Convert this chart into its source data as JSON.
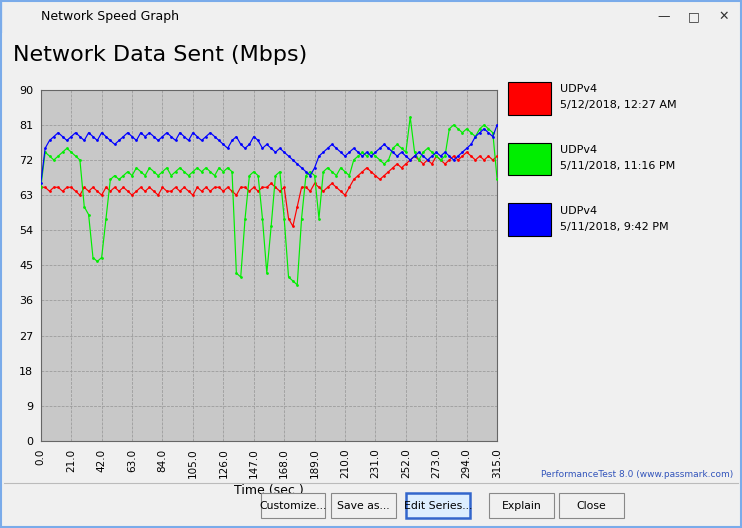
{
  "title": "Network Data Sent (Mbps)",
  "window_title": "Network Speed Graph",
  "xlabel": "Time (sec.)",
  "ylim": [
    0,
    90
  ],
  "yticks": [
    0,
    9,
    18,
    27,
    36,
    45,
    54,
    63,
    72,
    81,
    90
  ],
  "xticks": [
    0.0,
    21.0,
    42.0,
    63.0,
    84.0,
    105.0,
    126.0,
    147.0,
    168.0,
    189.0,
    210.0,
    231.0,
    252.0,
    273.0,
    294.0,
    315.0
  ],
  "xlim": [
    0,
    315
  ],
  "plot_bg_color": "#c8c8c8",
  "outer_bg_color": "#f0f0f0",
  "content_bg_color": "#ffffff",
  "titlebar_bg": "#f0f0f0",
  "legend": [
    {
      "label1": "UDPv4",
      "label2": "5/12/2018, 12:27 AM",
      "color": "#ff0000"
    },
    {
      "label1": "UDPv4",
      "label2": "5/11/2018, 11:16 PM",
      "color": "#00ee00"
    },
    {
      "label1": "UDPv4",
      "label2": "5/11/2018, 9:42 PM",
      "color": "#0000ff"
    }
  ],
  "watermark": "PerformanceTest 8.0 (www.passmark.com)",
  "red_x": [
    0,
    3,
    6,
    9,
    12,
    15,
    18,
    21,
    24,
    27,
    30,
    33,
    36,
    39,
    42,
    45,
    48,
    51,
    54,
    57,
    60,
    63,
    66,
    69,
    72,
    75,
    78,
    81,
    84,
    87,
    90,
    93,
    96,
    99,
    102,
    105,
    108,
    111,
    114,
    117,
    120,
    123,
    126,
    129,
    132,
    135,
    138,
    141,
    144,
    147,
    150,
    153,
    156,
    159,
    162,
    165,
    168,
    171,
    174,
    177,
    180,
    183,
    186,
    189,
    192,
    195,
    198,
    201,
    204,
    207,
    210,
    213,
    216,
    219,
    222,
    225,
    228,
    231,
    234,
    237,
    240,
    243,
    246,
    249,
    252,
    255,
    258,
    261,
    264,
    267,
    270,
    273,
    276,
    279,
    282,
    285,
    288,
    291,
    294,
    297,
    300,
    303,
    306,
    309,
    312,
    315
  ],
  "red_y": [
    65,
    65,
    64,
    65,
    65,
    64,
    65,
    65,
    64,
    63,
    65,
    64,
    65,
    64,
    63,
    65,
    64,
    65,
    64,
    65,
    64,
    63,
    64,
    65,
    64,
    65,
    64,
    63,
    65,
    64,
    64,
    65,
    64,
    65,
    64,
    63,
    65,
    64,
    65,
    64,
    65,
    65,
    64,
    65,
    64,
    63,
    65,
    65,
    64,
    65,
    64,
    65,
    65,
    66,
    65,
    64,
    65,
    57,
    55,
    60,
    65,
    65,
    64,
    66,
    65,
    64,
    65,
    66,
    65,
    64,
    63,
    65,
    67,
    68,
    69,
    70,
    69,
    68,
    67,
    68,
    69,
    70,
    71,
    70,
    71,
    72,
    73,
    72,
    71,
    72,
    71,
    73,
    72,
    71,
    72,
    73,
    72,
    73,
    74,
    73,
    72,
    73,
    72,
    73,
    72,
    73
  ],
  "green_x": [
    0,
    3,
    6,
    9,
    12,
    15,
    18,
    21,
    24,
    27,
    30,
    33,
    36,
    39,
    42,
    45,
    48,
    51,
    54,
    57,
    60,
    63,
    66,
    69,
    72,
    75,
    78,
    81,
    84,
    87,
    90,
    93,
    96,
    99,
    102,
    105,
    108,
    111,
    114,
    117,
    120,
    123,
    126,
    129,
    132,
    135,
    138,
    141,
    144,
    147,
    150,
    153,
    156,
    159,
    162,
    165,
    168,
    171,
    174,
    177,
    180,
    183,
    186,
    189,
    192,
    195,
    198,
    201,
    204,
    207,
    210,
    213,
    216,
    219,
    222,
    225,
    228,
    231,
    234,
    237,
    240,
    243,
    246,
    249,
    252,
    255,
    258,
    261,
    264,
    267,
    270,
    273,
    276,
    279,
    282,
    285,
    288,
    291,
    294,
    297,
    300,
    303,
    306,
    309,
    312,
    315
  ],
  "green_y": [
    65,
    74,
    73,
    72,
    73,
    74,
    75,
    74,
    73,
    72,
    60,
    58,
    47,
    46,
    47,
    57,
    67,
    68,
    67,
    68,
    69,
    68,
    70,
    69,
    68,
    70,
    69,
    68,
    69,
    70,
    68,
    69,
    70,
    69,
    68,
    69,
    70,
    69,
    70,
    69,
    68,
    70,
    69,
    70,
    69,
    43,
    42,
    57,
    68,
    69,
    68,
    57,
    43,
    55,
    68,
    69,
    57,
    42,
    41,
    40,
    57,
    68,
    69,
    68,
    57,
    69,
    70,
    69,
    68,
    70,
    69,
    68,
    72,
    73,
    74,
    73,
    74,
    73,
    72,
    71,
    72,
    75,
    76,
    75,
    74,
    83,
    74,
    72,
    74,
    75,
    74,
    73,
    72,
    73,
    80,
    81,
    80,
    79,
    80,
    79,
    78,
    80,
    81,
    80,
    79,
    67
  ],
  "blue_x": [
    0,
    3,
    6,
    9,
    12,
    15,
    18,
    21,
    24,
    27,
    30,
    33,
    36,
    39,
    42,
    45,
    48,
    51,
    54,
    57,
    60,
    63,
    66,
    69,
    72,
    75,
    78,
    81,
    84,
    87,
    90,
    93,
    96,
    99,
    102,
    105,
    108,
    111,
    114,
    117,
    120,
    123,
    126,
    129,
    132,
    135,
    138,
    141,
    144,
    147,
    150,
    153,
    156,
    159,
    162,
    165,
    168,
    171,
    174,
    177,
    180,
    183,
    186,
    189,
    192,
    195,
    198,
    201,
    204,
    207,
    210,
    213,
    216,
    219,
    222,
    225,
    228,
    231,
    234,
    237,
    240,
    243,
    246,
    249,
    252,
    255,
    258,
    261,
    264,
    267,
    270,
    273,
    276,
    279,
    282,
    285,
    288,
    291,
    294,
    297,
    300,
    303,
    306,
    309,
    312,
    315
  ],
  "blue_y": [
    66,
    75,
    77,
    78,
    79,
    78,
    77,
    78,
    79,
    78,
    77,
    79,
    78,
    77,
    79,
    78,
    77,
    76,
    77,
    78,
    79,
    78,
    77,
    79,
    78,
    79,
    78,
    77,
    78,
    79,
    78,
    77,
    79,
    78,
    77,
    79,
    78,
    77,
    78,
    79,
    78,
    77,
    76,
    75,
    77,
    78,
    76,
    75,
    76,
    78,
    77,
    75,
    76,
    75,
    74,
    75,
    74,
    73,
    72,
    71,
    70,
    69,
    68,
    70,
    73,
    74,
    75,
    76,
    75,
    74,
    73,
    74,
    75,
    74,
    73,
    74,
    73,
    74,
    75,
    76,
    75,
    74,
    73,
    74,
    73,
    72,
    73,
    74,
    73,
    72,
    73,
    74,
    73,
    74,
    73,
    72,
    73,
    74,
    75,
    76,
    78,
    79,
    80,
    79,
    78,
    81
  ],
  "button_labels": [
    "Customize...",
    "Save as...",
    "Edit Series...",
    "Explain",
    "Close"
  ],
  "button_highlighted": "Edit Series..."
}
